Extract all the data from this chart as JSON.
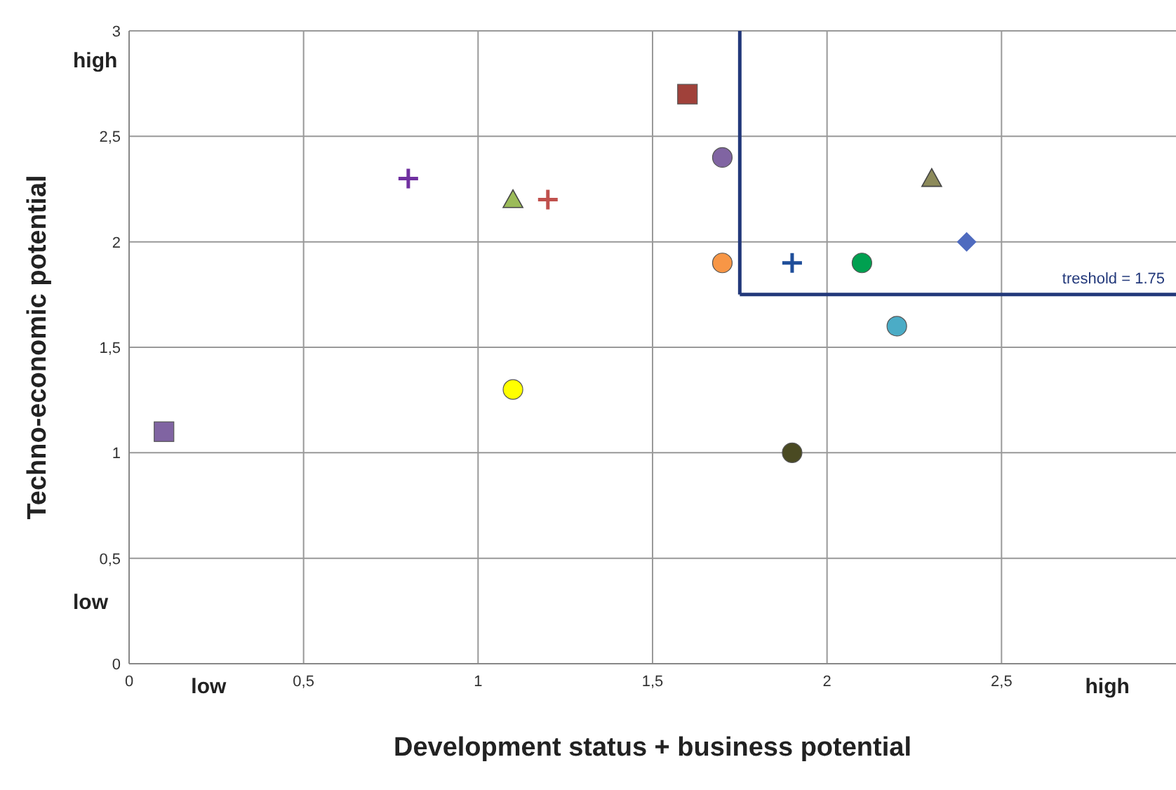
{
  "chart_data": {
    "type": "scatter",
    "xlabel": "Development status + business potential",
    "ylabel": "Techno-economic potential",
    "xlim": [
      0,
      3
    ],
    "ylim": [
      0,
      3
    ],
    "xticks": [
      0,
      {
        "value": 0.5,
        "label": "0,5"
      },
      1,
      {
        "value": 1.5,
        "label": "1,5"
      },
      2,
      {
        "value": 2.5,
        "label": "2,5"
      }
    ],
    "yticks": [
      0,
      {
        "value": 0.5,
        "label": "0,5"
      },
      1,
      {
        "value": 1.5,
        "label": "1,5"
      },
      2,
      {
        "value": 2.5,
        "label": "2,5"
      },
      3
    ],
    "grid": true,
    "legend": false,
    "annotations": [
      "high",
      "low",
      "low",
      "high"
    ],
    "ref_lines": [
      {
        "axis": "x",
        "value": 1.75,
        "color": "#22387a"
      },
      {
        "axis": "y",
        "value": 1.75,
        "label": "treshold = 1.75",
        "color": "#22387a"
      }
    ],
    "series": [
      {
        "x": [
          1.6
        ],
        "values": [
          2.7
        ],
        "color": "#a0413a",
        "marker": "square"
      },
      {
        "x": [
          1.7
        ],
        "values": [
          2.4
        ],
        "color": "#8064a2",
        "marker": "circle"
      },
      {
        "x": [
          0.8
        ],
        "values": [
          2.3
        ],
        "color": "#7030a0",
        "marker": "cross"
      },
      {
        "x": [
          1.1
        ],
        "values": [
          2.2
        ],
        "color": "#9bbb59",
        "marker": "triangle"
      },
      {
        "x": [
          1.2
        ],
        "values": [
          2.2
        ],
        "color": "#c0504d",
        "marker": "cross"
      },
      {
        "x": [
          2.3
        ],
        "values": [
          2.3
        ],
        "color": "#8c8a5a",
        "marker": "triangle"
      },
      {
        "x": [
          2.4
        ],
        "values": [
          2.0
        ],
        "color": "#4f6bbf",
        "marker": "diamond"
      },
      {
        "x": [
          1.7
        ],
        "values": [
          1.9
        ],
        "color": "#f79646",
        "marker": "circle"
      },
      {
        "x": [
          1.9
        ],
        "values": [
          1.9
        ],
        "color": "#1f4e9a",
        "marker": "cross"
      },
      {
        "x": [
          2.1
        ],
        "values": [
          1.9
        ],
        "color": "#00a050",
        "marker": "circle"
      },
      {
        "x": [
          2.2
        ],
        "values": [
          1.6
        ],
        "color": "#4bacc6",
        "marker": "circle"
      },
      {
        "x": [
          1.1
        ],
        "values": [
          1.3
        ],
        "color": "#ffff00",
        "marker": "circle"
      },
      {
        "x": [
          0.1
        ],
        "values": [
          1.1
        ],
        "color": "#8064a2",
        "marker": "square"
      },
      {
        "x": [
          1.9
        ],
        "values": [
          1.0
        ],
        "color": "#4a4a22",
        "marker": "circle"
      }
    ]
  }
}
